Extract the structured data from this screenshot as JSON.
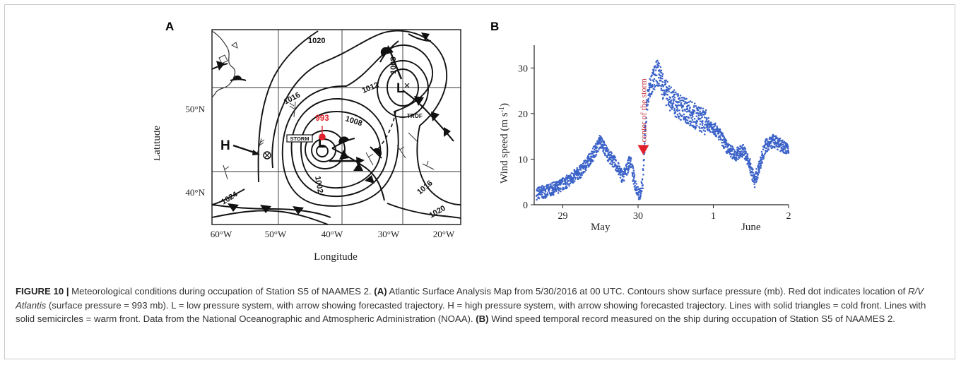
{
  "panel_a": {
    "letter": "A",
    "ylabel": "Latitude",
    "xlabel": "Longitude",
    "lat_ticks": [
      "50°N",
      "40°N"
    ],
    "lon_ticks": [
      "60°W",
      "50°W",
      "40°W",
      "30°W",
      "20°W"
    ],
    "isobar_labels": [
      "1020",
      "1016",
      "1012",
      "1008",
      "1008",
      "1002",
      "1024",
      "1016",
      "1020"
    ],
    "ship_pressure": "993",
    "storm_label": "STORM",
    "trof_label": "TROF",
    "high_symbol": "H",
    "low_symbol": "L",
    "colors": {
      "ship": "#e0202a",
      "lines": "#111111"
    }
  },
  "panel_b": {
    "letter": "B",
    "annotation": "center of the storm",
    "colors": {
      "points": "#3b62c8",
      "marker": "#e0202a",
      "annotation": "#c0303a"
    }
  },
  "chart_data": {
    "type": "scatter",
    "ylabel": "Wind speed (m s-1)",
    "ylabel_main": "Wind speed (m s",
    "ylabel_sup": "-1",
    "ylabel_close": ")",
    "y_ticks": [
      "0",
      "10",
      "20",
      "30"
    ],
    "ylim": [
      0,
      35
    ],
    "x_ticks": [
      "29",
      "30",
      "1",
      "2"
    ],
    "x_month_labels": [
      "May",
      "June"
    ],
    "x_tick_days": [
      0,
      1,
      2,
      3
    ],
    "x_range": [
      -0.38,
      3.0
    ],
    "annotation_x": 1.07,
    "annotation_y": 12,
    "profile_x": [
      -0.35,
      -0.2,
      -0.05,
      0.1,
      0.25,
      0.4,
      0.5,
      0.6,
      0.7,
      0.8,
      0.9,
      0.95,
      1.0,
      1.03,
      1.06,
      1.09,
      1.12,
      1.16,
      1.2,
      1.25,
      1.3,
      1.35,
      1.4,
      1.5,
      1.6,
      1.7,
      1.8,
      1.9,
      2.0,
      2.1,
      2.2,
      2.3,
      2.4,
      2.5,
      2.55,
      2.62,
      2.7,
      2.8,
      2.9,
      3.0
    ],
    "profile_y": [
      2.5,
      3,
      4,
      5.5,
      7.5,
      11,
      14,
      11,
      9,
      6,
      10,
      5,
      3,
      2,
      5,
      15,
      22,
      26,
      27,
      29,
      28,
      25,
      24,
      22,
      21,
      20,
      19,
      18,
      17,
      15,
      12,
      11,
      12,
      8,
      5,
      9,
      13,
      14,
      13,
      12
    ],
    "grid": false
  },
  "caption": {
    "fig_label": "FIGURE 10 |",
    "p1": " Meteorological conditions during occupation of Station S5 of NAAMES 2. ",
    "a_label": "(A)",
    "p2": " Atlantic Surface Analysis Map from 5/30/2016 at 00 UTC. Contours show surface pressure (mb). Red dot indicates location of ",
    "ship_name": "R/V Atlantis",
    "p3": " (surface pressure = 993 mb). L = low pressure system, with arrow showing forecasted trajectory. H = high pressure system, with arrow showing forecasted trajectory. Lines with solid triangles = cold front. Lines with solid semicircles = warm front. Data from the National Oceanographic and Atmospheric Administration (NOAA). ",
    "b_label": "(B)",
    "p4": " Wind speed temporal record measured on the ship during occupation of Station S5 of NAAMES 2."
  }
}
